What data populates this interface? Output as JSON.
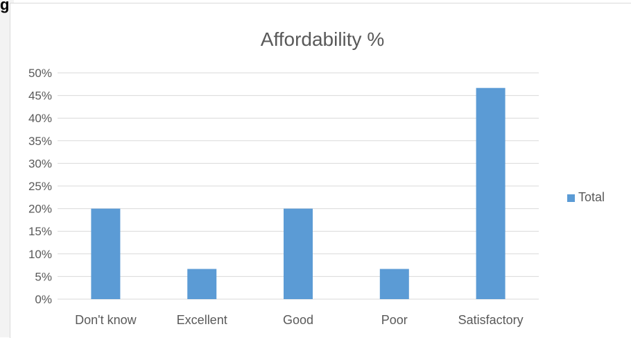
{
  "page": {
    "corner_mark": "g"
  },
  "chart_data": {
    "type": "bar",
    "title": "Affordability %",
    "xlabel": "",
    "ylabel": "",
    "categories": [
      "Don't know",
      "Excellent",
      "Good",
      "Poor",
      "Satisfactory"
    ],
    "series": [
      {
        "name": "Total",
        "values": [
          20,
          6.67,
          20,
          6.67,
          46.67
        ],
        "color": "#5b9bd5"
      }
    ],
    "ylim": [
      0,
      50
    ],
    "y_tick_step": 5,
    "y_tick_suffix": "%",
    "grid": true,
    "gridline_color": "#d9d9d9",
    "legend_position": "right"
  }
}
